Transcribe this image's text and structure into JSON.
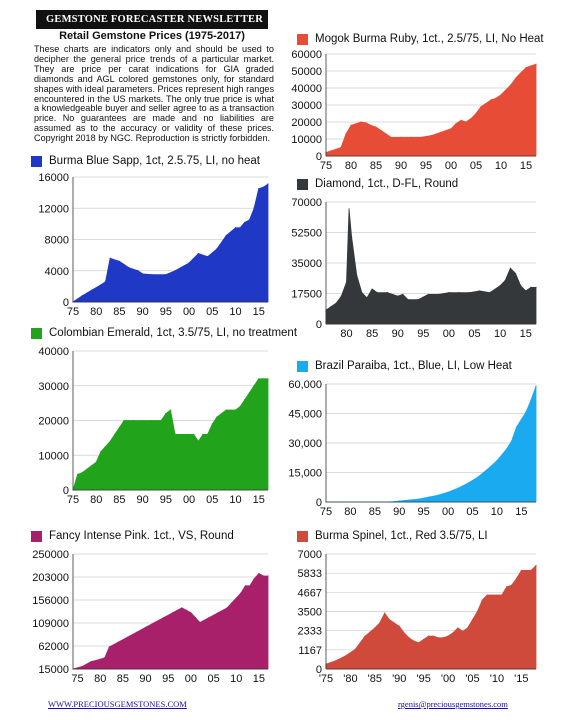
{
  "header": {
    "banner": "GEMSTONE FORECASTER NEWSLETTER",
    "title": "Retail Gemstone Prices (1975-2017)",
    "intro": "These charts are indicators only and should be used to decipher the general price trends of a particular market. They are price per carat indications for GIA graded diamonds and AGL colored gemstones only, for standard shapes with ideal parameters. Prices represent high ranges encountered in the US markets. The only true price is what a knowledgeable buyer and seller agree to as a transaction price. No guarantees are made and no liabilities are assumed as to the accuracy or validity of these prices. Copyright 2018 by NGC. Reproduction is strictly forbidden."
  },
  "footer": {
    "left_link": "WWW.PRECIOUSGEMSTONES.COM",
    "right_link": "rgenis@preciousgemstones.com"
  },
  "chart_data": [
    {
      "id": "blue",
      "type": "area",
      "title": "Burma Blue Sapp, 1ct, 2.5.75, LI, no heat",
      "color": "#1f39c6",
      "xlim": [
        1975,
        2017
      ],
      "ylim": [
        0,
        16000
      ],
      "yticks": [
        0,
        4000,
        8000,
        12000,
        16000
      ],
      "yticklabels": [
        "0",
        "4000",
        "8000",
        "12000",
        "16000"
      ],
      "xticks": [
        1975,
        1980,
        1985,
        1990,
        1995,
        2000,
        2005,
        2010,
        2015
      ],
      "xticklabels": [
        "75",
        "80",
        "85",
        "90",
        "95",
        "00",
        "05",
        "10",
        "15"
      ],
      "x": [
        1975,
        1977,
        1979,
        1981,
        1982,
        1983,
        1985,
        1986,
        1987,
        1989,
        1990,
        1992,
        1995,
        1997,
        2000,
        2002,
        2004,
        2006,
        2008,
        2010,
        2011,
        2012,
        2013,
        2014,
        2015,
        2016,
        2017
      ],
      "values": [
        0,
        800,
        1500,
        2200,
        2600,
        5600,
        5200,
        4800,
        4400,
        4000,
        3600,
        3500,
        3500,
        4000,
        5000,
        6200,
        5800,
        6800,
        8500,
        9500,
        9500,
        10200,
        10500,
        12000,
        14500,
        14700,
        15100
      ]
    },
    {
      "id": "ruby",
      "type": "area",
      "title": "Mogok Burma Ruby, 1ct., 2.5/75, LI, No Heat",
      "color": "#e74c36",
      "xlim": [
        1975,
        2017
      ],
      "ylim": [
        0,
        60000
      ],
      "yticks": [
        0,
        10000,
        20000,
        30000,
        40000,
        50000,
        60000
      ],
      "yticklabels": [
        "0",
        "10000",
        "20000",
        "30000",
        "40000",
        "50000",
        "60000"
      ],
      "xticks": [
        1975,
        1980,
        1985,
        1990,
        1995,
        2000,
        2005,
        2010,
        2015
      ],
      "xticklabels": [
        "75",
        "80",
        "85",
        "90",
        "95",
        "00",
        "05",
        "10",
        "15"
      ],
      "x": [
        1975,
        1976,
        1977,
        1978,
        1979,
        1980,
        1981,
        1982,
        1983,
        1984,
        1985,
        1986,
        1987,
        1988,
        1990,
        1992,
        1994,
        1996,
        1998,
        2000,
        2001,
        2002,
        2003,
        2004,
        2005,
        2006,
        2008,
        2009,
        2010,
        2012,
        2013,
        2014,
        2015,
        2016,
        2017
      ],
      "values": [
        2000,
        3000,
        4000,
        5000,
        13000,
        18000,
        19000,
        20000,
        19500,
        18000,
        17000,
        15000,
        13000,
        11000,
        11000,
        11000,
        11000,
        12000,
        14000,
        16000,
        19000,
        21000,
        20000,
        22000,
        25000,
        29000,
        33000,
        34000,
        36000,
        42000,
        46000,
        49000,
        52000,
        53000,
        54000
      ]
    },
    {
      "id": "diamond",
      "type": "area",
      "title": "Diamond, 1ct., D-FL, Round",
      "color": "#34383a",
      "xlim": [
        1976,
        2017
      ],
      "ylim": [
        0,
        70000
      ],
      "yticks": [
        0,
        17500,
        35000,
        52500,
        70000
      ],
      "yticklabels": [
        "0",
        "17500",
        "35000",
        "52500",
        "70000"
      ],
      "xticks": [
        1980,
        1985,
        1990,
        1995,
        2000,
        2005,
        2010,
        2015
      ],
      "xticklabels": [
        "80",
        "85",
        "90",
        "95",
        "00",
        "05",
        "10",
        "15"
      ],
      "x": [
        1976,
        1977,
        1978,
        1979,
        1980,
        1980.5,
        1981,
        1982,
        1983,
        1984,
        1985,
        1986,
        1988,
        1990,
        1991,
        1992,
        1994,
        1996,
        1998,
        2000,
        2002,
        2004,
        2006,
        2008,
        2010,
        2011,
        2012,
        2013,
        2014,
        2015,
        2016,
        2017
      ],
      "values": [
        8000,
        10000,
        12000,
        16000,
        24000,
        66000,
        50000,
        28000,
        18000,
        15000,
        20000,
        18000,
        18000,
        16000,
        17000,
        14000,
        14000,
        17000,
        17000,
        18000,
        18000,
        18000,
        19000,
        18000,
        22000,
        25000,
        32000,
        29000,
        22000,
        19000,
        21000,
        21000
      ]
    },
    {
      "id": "emerald",
      "type": "area",
      "title": "Colombian Emerald, 1ct, 3.5/75, LI, no treatment",
      "color": "#22a31c",
      "xlim": [
        1975,
        2017
      ],
      "ylim": [
        0,
        40000
      ],
      "yticks": [
        0,
        10000,
        20000,
        30000,
        40000
      ],
      "yticklabels": [
        "0",
        "10000",
        "20000",
        "30000",
        "40000"
      ],
      "xticks": [
        1975,
        1980,
        1985,
        1990,
        1995,
        2000,
        2005,
        2010,
        2015
      ],
      "xticklabels": [
        "75",
        "80",
        "85",
        "90",
        "95",
        "00",
        "05",
        "10",
        "15"
      ],
      "x": [
        1975,
        1976,
        1977,
        1978,
        1979,
        1980,
        1981,
        1982,
        1983,
        1984,
        1985,
        1986,
        1987,
        1988,
        1990,
        1992,
        1994,
        1995,
        1996,
        1997,
        1998,
        2000,
        2001,
        2002,
        2003,
        2004,
        2005,
        2006,
        2007,
        2008,
        2009,
        2010,
        2011,
        2012,
        2013,
        2014,
        2015,
        2016,
        2017
      ],
      "values": [
        0,
        4500,
        5000,
        6000,
        7000,
        8000,
        11000,
        12500,
        14000,
        16000,
        18000,
        20000,
        20000,
        20000,
        20000,
        20000,
        20000,
        22000,
        23000,
        16000,
        16000,
        16000,
        16000,
        14000,
        16000,
        16000,
        19000,
        21000,
        22000,
        23000,
        23000,
        23000,
        24000,
        26000,
        28000,
        30000,
        32000,
        32000,
        32000
      ]
    },
    {
      "id": "paraiba",
      "type": "area",
      "title": "Brazil Paraiba, 1ct., Blue, LI, Low Heat",
      "color": "#1aaaf0",
      "xlim": [
        1975,
        2018
      ],
      "ylim": [
        0,
        60000
      ],
      "yticks": [
        0,
        15000,
        30000,
        45000,
        60000
      ],
      "yticklabels": [
        "0",
        "15,000",
        "30,000",
        "45,000",
        "60,000"
      ],
      "xticks": [
        1975,
        1980,
        1985,
        1990,
        1995,
        2000,
        2005,
        2010,
        2015
      ],
      "xticklabels": [
        "75",
        "80",
        "85",
        "90",
        "95",
        "00",
        "05",
        "10",
        "15"
      ],
      "x": [
        1975,
        1988,
        1990,
        1992,
        1994,
        1996,
        1998,
        2000,
        2002,
        2004,
        2006,
        2008,
        2010,
        2012,
        2013,
        2014,
        2015,
        2016,
        2017,
        2018
      ],
      "values": [
        0,
        0,
        500,
        1000,
        1500,
        2500,
        3500,
        5000,
        7000,
        9500,
        12500,
        16500,
        21000,
        27000,
        31000,
        38000,
        42000,
        46000,
        52000,
        59000
      ]
    },
    {
      "id": "pink",
      "type": "area",
      "title": "Fancy Intense Pink. 1ct., VS, Round",
      "color": "#a8206a",
      "xlim": [
        1974,
        2017
      ],
      "ylim": [
        15000,
        250000
      ],
      "yticks": [
        15000,
        62000,
        109000,
        156000,
        203000,
        250000
      ],
      "yticklabels": [
        "15000",
        "62000",
        "109000",
        "156000",
        "203000",
        "250000"
      ],
      "xticks": [
        1975,
        1980,
        1985,
        1990,
        1995,
        2000,
        2005,
        2010,
        2015
      ],
      "xticklabels": [
        "75",
        "80",
        "85",
        "90",
        "95",
        "00",
        "05",
        "10",
        "15"
      ],
      "x": [
        1974,
        1976,
        1978,
        1980,
        1981,
        1982,
        1984,
        1986,
        1988,
        1990,
        1992,
        1994,
        1996,
        1997,
        1998,
        1999,
        2000,
        2001,
        2002,
        2004,
        2006,
        2008,
        2009,
        2010,
        2011,
        2012,
        2013,
        2014,
        2015,
        2016,
        2017
      ],
      "values": [
        15000,
        20000,
        30000,
        35000,
        38000,
        60000,
        70000,
        80000,
        90000,
        100000,
        110000,
        120000,
        130000,
        135000,
        140000,
        135000,
        130000,
        120000,
        110000,
        120000,
        130000,
        140000,
        150000,
        160000,
        170000,
        185000,
        185000,
        200000,
        210000,
        205000,
        205000
      ]
    },
    {
      "id": "spinel",
      "type": "area",
      "title": "Burma Spinel, 1ct., Red 3.5/75, LI",
      "color": "#cf4a3b",
      "xlim": [
        1975,
        2018
      ],
      "ylim": [
        0,
        7000
      ],
      "yticks": [
        0,
        1167,
        2333,
        3500,
        4667,
        5833,
        7000
      ],
      "yticklabels": [
        "0",
        "1167",
        "2333",
        "3500",
        "4667",
        "5833",
        "7000"
      ],
      "xticks": [
        1975,
        1980,
        1985,
        1990,
        1995,
        2000,
        2005,
        2010,
        2015
      ],
      "xticklabels": [
        "'75",
        "'80",
        "'85",
        "'90",
        "'95",
        "'00",
        "'05",
        "'10",
        "'15"
      ],
      "x": [
        1975,
        1977,
        1979,
        1981,
        1983,
        1985,
        1986,
        1987,
        1988,
        1989,
        1990,
        1991,
        1992,
        1993,
        1994,
        1995,
        1996,
        1997,
        1998,
        1999,
        2000,
        2001,
        2002,
        2003,
        2004,
        2005,
        2006,
        2007,
        2008,
        2009,
        2010,
        2011,
        2012,
        2013,
        2014,
        2015,
        2016,
        2017,
        2018
      ],
      "values": [
        300,
        500,
        800,
        1200,
        2000,
        2500,
        2800,
        3400,
        3000,
        2800,
        2600,
        2200,
        1900,
        1700,
        1600,
        1800,
        2000,
        2000,
        1900,
        1900,
        2000,
        2200,
        2500,
        2300,
        2500,
        3000,
        3500,
        4200,
        4500,
        4500,
        4500,
        4500,
        5000,
        5100,
        5500,
        6000,
        6000,
        6000,
        6300
      ]
    }
  ]
}
